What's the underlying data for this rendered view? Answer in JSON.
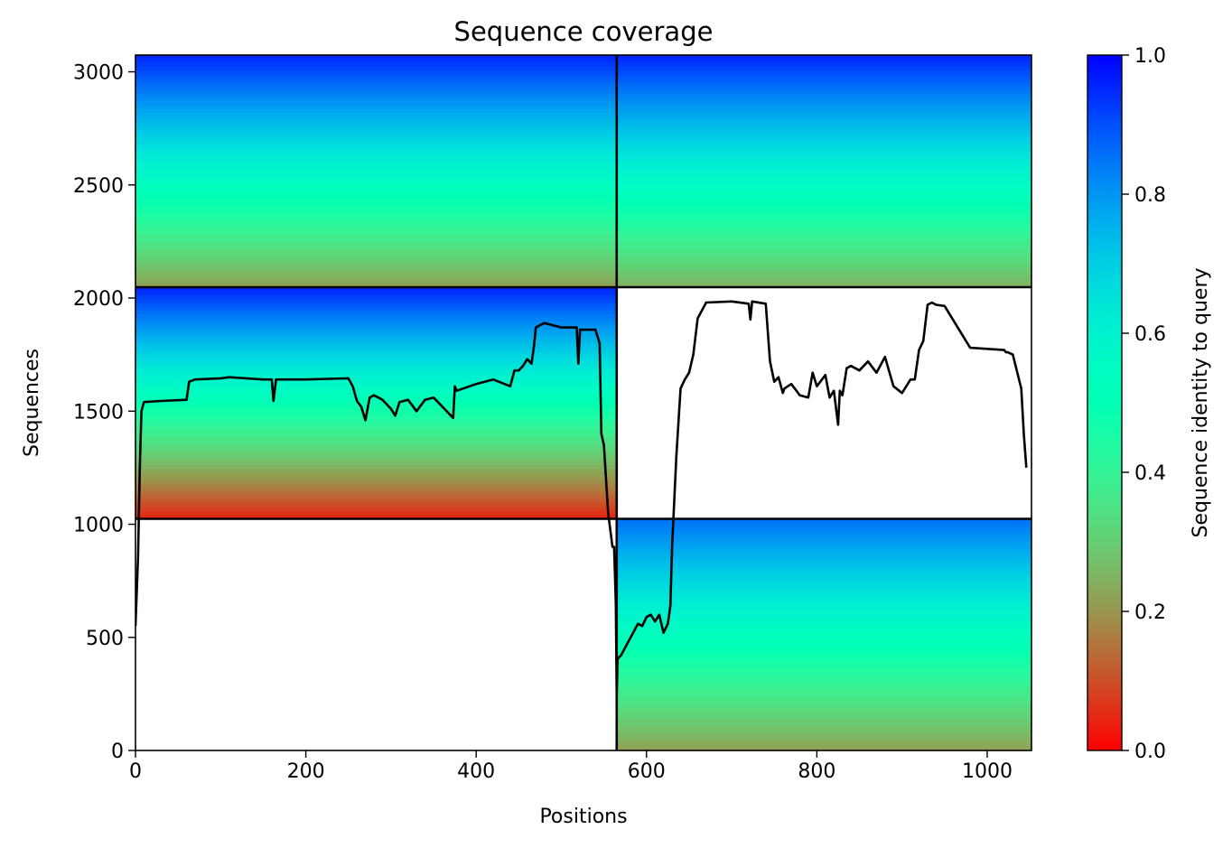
{
  "chart_data": {
    "type": "heatmap",
    "title": "Sequence coverage",
    "xlabel": "Positions",
    "ylabel": "Sequences",
    "xlim": [
      0,
      1052
    ],
    "ylim": [
      0,
      3074
    ],
    "xticks": [
      "0",
      "200",
      "400",
      "600",
      "800",
      "1000"
    ],
    "xtick_values": [
      0,
      200,
      400,
      600,
      800,
      1000
    ],
    "yticks": [
      "0",
      "500",
      "1000",
      "1500",
      "2000",
      "2500",
      "3000"
    ],
    "ytick_values": [
      0,
      500,
      1000,
      1500,
      2000,
      2500,
      3000
    ],
    "colorbar": {
      "label": "Sequence identity to query",
      "colormap": "rainbow_r",
      "range": [
        0,
        1
      ],
      "ticks": [
        "0.0",
        "0.2",
        "0.4",
        "0.6",
        "0.8",
        "1.0"
      ],
      "tick_values": [
        0,
        0.2,
        0.4,
        0.6,
        0.8,
        1.0
      ]
    },
    "block_boundaries": {
      "positions": [
        565
      ],
      "sequences": [
        1024,
        2048
      ]
    },
    "blocks": [
      {
        "x": [
          0,
          565
        ],
        "y": [
          2048,
          3074
        ],
        "identity_top": 0.95,
        "identity_bottom": 0.22
      },
      {
        "x": [
          565,
          1052
        ],
        "y": [
          2048,
          3074
        ],
        "identity_top": 0.95,
        "identity_bottom": 0.25
      },
      {
        "x": [
          0,
          565
        ],
        "y": [
          1024,
          2048
        ],
        "identity_top": 0.95,
        "identity_bottom": 0.05
      },
      {
        "x": [
          565,
          1052
        ],
        "y": [
          0,
          1024
        ],
        "identity_top": 0.85,
        "identity_bottom": 0.22
      }
    ],
    "coverage_line": {
      "color": "#000000",
      "x": [
        0,
        3,
        5,
        6,
        7,
        10,
        30,
        60,
        63,
        70,
        100,
        110,
        150,
        160,
        162,
        165,
        200,
        250,
        255,
        260,
        265,
        270,
        275,
        280,
        290,
        300,
        305,
        310,
        320,
        330,
        340,
        350,
        373,
        375,
        377,
        400,
        420,
        440,
        445,
        450,
        455,
        460,
        465,
        468,
        470,
        480,
        500,
        518,
        520,
        522,
        540,
        545,
        547,
        550,
        555,
        560,
        562,
        564,
        565,
        566,
        567,
        570,
        580,
        590,
        595,
        600,
        605,
        610,
        615,
        620,
        625,
        628,
        630,
        635,
        640,
        645,
        650,
        655,
        660,
        670,
        700,
        720,
        722,
        724,
        740,
        745,
        750,
        755,
        760,
        762,
        770,
        780,
        790,
        795,
        800,
        810,
        815,
        820,
        825,
        827,
        830,
        835,
        840,
        850,
        860,
        870,
        880,
        890,
        900,
        910,
        915,
        920,
        925,
        930,
        935,
        940,
        950,
        980,
        1020,
        1022,
        1024,
        1030,
        1040,
        1043,
        1046,
        1049,
        1052
      ],
      "y": [
        550,
        850,
        1230,
        1380,
        1500,
        1540,
        1545,
        1550,
        1630,
        1640,
        1645,
        1650,
        1640,
        1640,
        1545,
        1640,
        1640,
        1645,
        1610,
        1545,
        1520,
        1460,
        1560,
        1570,
        1550,
        1510,
        1480,
        1540,
        1550,
        1500,
        1550,
        1560,
        1470,
        1610,
        1590,
        1620,
        1640,
        1610,
        1680,
        1680,
        1700,
        1730,
        1710,
        1790,
        1870,
        1890,
        1870,
        1870,
        1710,
        1860,
        1860,
        1800,
        1400,
        1350,
        1050,
        900,
        900,
        650,
        250,
        400,
        410,
        420,
        490,
        560,
        550,
        590,
        600,
        570,
        600,
        520,
        560,
        640,
        900,
        1300,
        1600,
        1640,
        1670,
        1750,
        1910,
        1980,
        1985,
        1975,
        1905,
        1985,
        1975,
        1720,
        1630,
        1650,
        1580,
        1600,
        1620,
        1570,
        1560,
        1670,
        1610,
        1660,
        1560,
        1590,
        1440,
        1590,
        1570,
        1690,
        1700,
        1680,
        1720,
        1670,
        1740,
        1610,
        1580,
        1640,
        1640,
        1770,
        1810,
        1970,
        1980,
        1970,
        1965,
        1780,
        1770,
        1760,
        1760,
        1750,
        1600,
        1400,
        1250
      ]
    }
  }
}
